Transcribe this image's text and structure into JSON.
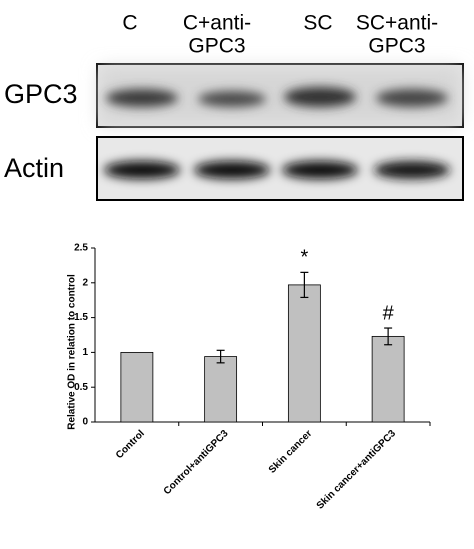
{
  "blot": {
    "lanes": [
      [
        "C"
      ],
      [
        "C+anti-",
        "GPC3"
      ],
      [
        "SC"
      ],
      [
        "SC+anti-",
        "GPC3"
      ]
    ],
    "rows": [
      "GPC3",
      "Actin"
    ]
  },
  "chart_data": {
    "type": "bar",
    "ylabel": "Relative OD in relation to control",
    "categories": [
      "Control",
      "Control+antiGPC3",
      "Skin cancer",
      "Skin cancer+antiGPC3"
    ],
    "values": [
      1,
      0.94,
      1.97,
      1.23
    ],
    "errors": [
      0,
      0.09,
      0.18,
      0.12
    ],
    "annotations": [
      null,
      null,
      "*",
      "#"
    ],
    "color": "#c0c0c0",
    "ylim": [
      0,
      2.5
    ],
    "yticks": [
      0,
      0.5,
      1,
      1.5,
      2,
      2.5
    ],
    "grid": false
  }
}
